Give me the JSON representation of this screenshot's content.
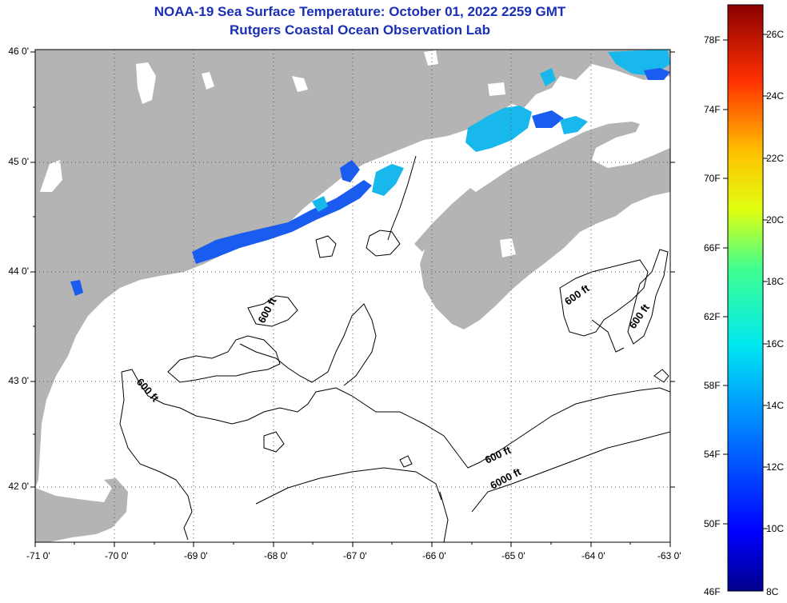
{
  "title": {
    "line1": "NOAA-19 Sea Surface Temperature:  October 01, 2022 2259 GMT",
    "line2": "Rutgers Coastal Ocean Observation Lab"
  },
  "x_ticks": [
    "-71 0'",
    "-70 0'",
    "-69 0'",
    "-68 0'",
    "-67 0'",
    "-66 0'",
    "-65 0'",
    "-64 0'",
    "-63 0'"
  ],
  "y_ticks": [
    "46 0'",
    "45 0'",
    "44 0'",
    "43 0'",
    "42 0'"
  ],
  "contour_labels": [
    "600 ft",
    "600 ft",
    "600 ft",
    "600 ft",
    "600 ft",
    "6000 ft"
  ],
  "colorbar": {
    "fahrenheit": [
      "78F",
      "74F",
      "70F",
      "66F",
      "62F",
      "58F",
      "54F",
      "50F",
      "46F"
    ],
    "celsius": [
      "26C",
      "24C",
      "22C",
      "20C",
      "18C",
      "16C",
      "14C",
      "12C",
      "10C",
      "8C"
    ]
  },
  "colors": {
    "land": "#b4b4b4",
    "ocean": "#ffffff",
    "title": "#1a2fb4",
    "sst_cool": "#1a5cf0",
    "sst_mid": "#18b8ec"
  }
}
